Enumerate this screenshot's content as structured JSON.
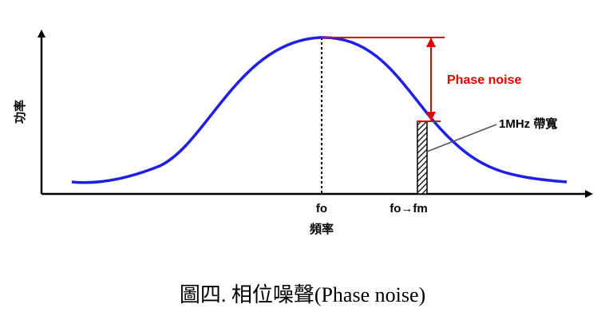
{
  "diagram": {
    "y_axis_label": "功率",
    "x_axis_label": "頻率",
    "center_label": "fo",
    "offset_label": "fo→fm",
    "phase_noise_label": "Phase noise",
    "bandwidth_label": "1MHz 帶寬"
  },
  "caption": "圖四. 相位噪聲(Phase noise)"
}
